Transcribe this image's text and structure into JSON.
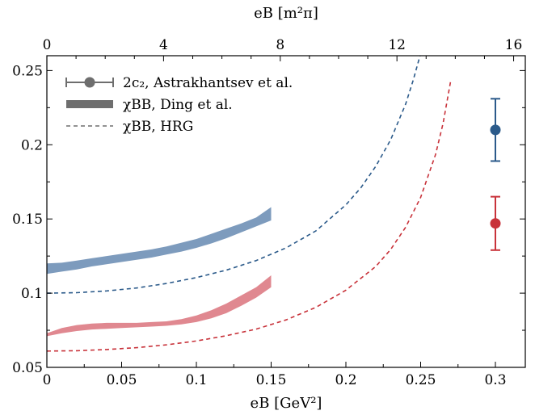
{
  "chart_data": {
    "type": "line",
    "title": "",
    "xlabel": "eB [GeV²]",
    "x2label": "eB [m²π]",
    "ylabel": "",
    "xlim": [
      0,
      0.32
    ],
    "ylim": [
      0.05,
      0.26
    ],
    "x2lim": [
      0,
      16.4
    ],
    "xticks": [
      0,
      0.05,
      0.1,
      0.15,
      0.2,
      0.25,
      0.3
    ],
    "xtick_labels": [
      "0",
      "0.05",
      "0.1",
      "0.15",
      "0.2",
      "0.25",
      "0.3"
    ],
    "x2ticks": [
      0,
      4,
      8,
      12,
      16
    ],
    "x2tick_labels": [
      "0",
      "4",
      "8",
      "12",
      "16"
    ],
    "yticks": [
      0.05,
      0.1,
      0.15,
      0.2,
      0.25
    ],
    "ytick_labels": [
      "0.05",
      "0.1",
      "0.15",
      "0.2",
      "0.25"
    ],
    "grid": false,
    "legend_position": "top-left",
    "legend": [
      {
        "label": "2c₂, Astrakhantsev et al.",
        "style": "errorbar",
        "color": "#6e6e6e"
      },
      {
        "label": "χBB, Ding et al.",
        "style": "band",
        "color": "#6e6e6e"
      },
      {
        "label": "χBB, HRG",
        "style": "dashed",
        "color": "#6e6e6e"
      }
    ],
    "colors": {
      "blue": "#2b5a8a",
      "red": "#c8323a",
      "blue_band": "#7d9bbd",
      "red_band": "#e08890"
    },
    "series": [
      {
        "type": "band",
        "color": "#7d9bbd",
        "x": [
          0,
          0.01,
          0.02,
          0.03,
          0.04,
          0.05,
          0.06,
          0.07,
          0.08,
          0.09,
          0.1,
          0.11,
          0.12,
          0.13,
          0.14,
          0.15
        ],
        "lower": [
          0.113,
          0.1145,
          0.116,
          0.118,
          0.1195,
          0.121,
          0.1225,
          0.124,
          0.126,
          0.128,
          0.1305,
          0.1335,
          0.137,
          0.141,
          0.145,
          0.149
        ],
        "upper": [
          0.12,
          0.1205,
          0.122,
          0.1235,
          0.125,
          0.1265,
          0.128,
          0.1295,
          0.1315,
          0.134,
          0.1365,
          0.14,
          0.1435,
          0.147,
          0.151,
          0.158
        ]
      },
      {
        "type": "band",
        "color": "#e08890",
        "x": [
          0,
          0.01,
          0.02,
          0.03,
          0.04,
          0.05,
          0.06,
          0.07,
          0.08,
          0.09,
          0.1,
          0.11,
          0.12,
          0.13,
          0.14,
          0.15
        ],
        "lower": [
          0.071,
          0.073,
          0.0745,
          0.0755,
          0.076,
          0.0765,
          0.077,
          0.0775,
          0.078,
          0.079,
          0.0805,
          0.083,
          0.0865,
          0.0915,
          0.097,
          0.104
        ],
        "upper": [
          0.073,
          0.0765,
          0.0785,
          0.0795,
          0.08,
          0.08,
          0.08,
          0.0805,
          0.081,
          0.0825,
          0.085,
          0.0885,
          0.093,
          0.0985,
          0.104,
          0.112
        ]
      },
      {
        "type": "dashed",
        "color": "#2b5a8a",
        "x": [
          0,
          0.02,
          0.04,
          0.06,
          0.08,
          0.1,
          0.12,
          0.14,
          0.16,
          0.18,
          0.2,
          0.21,
          0.22,
          0.23,
          0.24,
          0.245,
          0.25,
          0.255
        ],
        "values": [
          0.1,
          0.1003,
          0.1015,
          0.1035,
          0.1065,
          0.1105,
          0.1155,
          0.122,
          0.1305,
          0.142,
          0.1595,
          0.171,
          0.1855,
          0.2035,
          0.2275,
          0.2435,
          0.2615,
          0.282
        ]
      },
      {
        "type": "dashed",
        "color": "#c8323a",
        "x": [
          0,
          0.02,
          0.04,
          0.06,
          0.08,
          0.1,
          0.12,
          0.14,
          0.16,
          0.18,
          0.2,
          0.22,
          0.23,
          0.24,
          0.25,
          0.26,
          0.265,
          0.27
        ],
        "values": [
          0.061,
          0.0612,
          0.062,
          0.0633,
          0.0652,
          0.0678,
          0.0713,
          0.0758,
          0.082,
          0.0905,
          0.102,
          0.118,
          0.1295,
          0.1445,
          0.1645,
          0.1935,
          0.2145,
          0.2425
        ]
      },
      {
        "type": "errorbar",
        "color": "#2b5a8a",
        "x": [
          0.3
        ],
        "values": [
          0.21
        ],
        "err_low": [
          0.189
        ],
        "err_high": [
          0.231
        ]
      },
      {
        "type": "errorbar",
        "color": "#c8323a",
        "x": [
          0.3
        ],
        "values": [
          0.147
        ],
        "err_low": [
          0.129
        ],
        "err_high": [
          0.165
        ]
      }
    ]
  }
}
